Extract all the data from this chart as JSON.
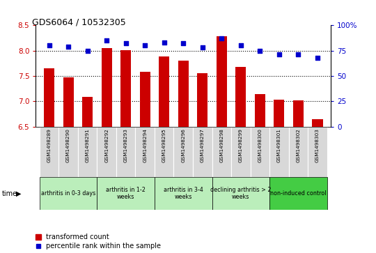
{
  "title": "GDS6064 / 10532305",
  "samples": [
    "GSM1498289",
    "GSM1498290",
    "GSM1498291",
    "GSM1498292",
    "GSM1498293",
    "GSM1498294",
    "GSM1498295",
    "GSM1498296",
    "GSM1498297",
    "GSM1498298",
    "GSM1498299",
    "GSM1498300",
    "GSM1498301",
    "GSM1498302",
    "GSM1498303"
  ],
  "bar_values": [
    7.65,
    7.47,
    7.09,
    8.05,
    8.01,
    7.58,
    7.88,
    7.8,
    7.55,
    8.28,
    7.68,
    7.14,
    7.03,
    7.02,
    6.65
  ],
  "dot_values": [
    80,
    79,
    75,
    85,
    82,
    80,
    83,
    82,
    78,
    87,
    80,
    75,
    71,
    71,
    68
  ],
  "bar_color": "#cc0000",
  "dot_color": "#0000cc",
  "ylim_left": [
    6.5,
    8.5
  ],
  "ylim_right": [
    0,
    100
  ],
  "yticks_left": [
    6.5,
    7.0,
    7.5,
    8.0,
    8.5
  ],
  "yticks_right": [
    0,
    25,
    50,
    75,
    100
  ],
  "grid_values": [
    7.0,
    7.5,
    8.0
  ],
  "groups": [
    {
      "label": "arthritis in 0-3 days",
      "start": 0,
      "end": 3
    },
    {
      "label": "arthritis in 1-2\nweeks",
      "start": 3,
      "end": 6
    },
    {
      "label": "arthritis in 3-4\nweeks",
      "start": 6,
      "end": 9
    },
    {
      "label": "declining arthritis > 2\nweeks",
      "start": 9,
      "end": 12
    },
    {
      "label": "non-induced control",
      "start": 12,
      "end": 15
    }
  ],
  "group_colors": [
    "#bbeebb",
    "#bbeebb",
    "#bbeebb",
    "#bbeebb",
    "#44cc44"
  ],
  "legend_bar_label": "transformed count",
  "legend_dot_label": "percentile rank within the sample"
}
